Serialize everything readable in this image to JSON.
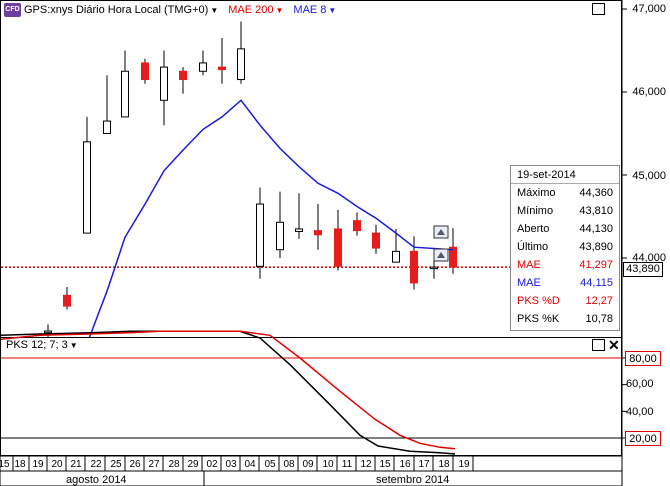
{
  "header": {
    "badge": "CFD",
    "symbol_title": "GPS:xnys Diário Hora Local (TMG+0)",
    "mae200_label": "MAE 200",
    "mae8_label": "MAE 8"
  },
  "price_axis": {
    "labels": [
      "47,000",
      "46,000",
      "45,000",
      "44,000"
    ]
  },
  "last_price_tag": "43,890",
  "info_box": {
    "date": "19-set-2014",
    "rows": [
      {
        "label": "Máximo",
        "value": "44,360"
      },
      {
        "label": "Mínimo",
        "value": "43,810"
      },
      {
        "label": "Aberto",
        "value": "44,130"
      },
      {
        "label": "Último",
        "value": "43,890"
      },
      {
        "label": "MAE",
        "value": "41,297"
      },
      {
        "label": "MAE",
        "value": "44,115"
      },
      {
        "label": "PKS %D",
        "value": "12,27"
      },
      {
        "label": "PKS %K",
        "value": "10,78"
      }
    ]
  },
  "indicator": {
    "title": "PKS 12; 7; 3",
    "level_high": "80,00",
    "level_low": "20,00",
    "ticks": [
      "60,00",
      "40,00"
    ]
  },
  "x_axis": {
    "days": [
      "15",
      "18",
      "19",
      "20",
      "21",
      "22",
      "25",
      "26",
      "27",
      "28",
      "29",
      "02",
      "03",
      "04",
      "05",
      "08",
      "09",
      "10",
      "11",
      "12",
      "15",
      "16",
      "17",
      "18",
      "19"
    ],
    "months": [
      "agosto 2014",
      "setembro 2014"
    ]
  },
  "colors": {
    "up": "#ffffff",
    "down": "#e81c1c",
    "mae8": "#1a1ad8",
    "red": "#e00000"
  },
  "chart_data": {
    "type": "candlestick",
    "y_range": [
      43000,
      47100
    ],
    "candles": [
      {
        "date": "20",
        "open": 43100,
        "high": 43200,
        "low": 43050,
        "close": 43120
      },
      {
        "date": "21",
        "open": 43550,
        "high": 43650,
        "low": 43380,
        "close": 43420
      },
      {
        "date": "22",
        "open": 44300,
        "high": 45700,
        "low": 44300,
        "close": 45400
      },
      {
        "date": "25",
        "open": 45500,
        "high": 46200,
        "low": 45500,
        "close": 45650
      },
      {
        "date": "26",
        "open": 45700,
        "high": 46500,
        "low": 45700,
        "close": 46250
      },
      {
        "date": "27",
        "open": 46350,
        "high": 46400,
        "low": 46100,
        "close": 46150
      },
      {
        "date": "28",
        "open": 45900,
        "high": 46500,
        "low": 45600,
        "close": 46300
      },
      {
        "date": "29",
        "open": 46250,
        "high": 46300,
        "low": 45980,
        "close": 46150
      },
      {
        "date": "02",
        "open": 46250,
        "high": 46500,
        "low": 46200,
        "close": 46350
      },
      {
        "date": "03",
        "open": 46300,
        "high": 46650,
        "low": 46100,
        "close": 46270
      },
      {
        "date": "04",
        "open": 46150,
        "high": 46850,
        "low": 46100,
        "close": 46520
      },
      {
        "date": "08",
        "open": 43900,
        "high": 44850,
        "low": 43750,
        "close": 44650
      },
      {
        "date": "09",
        "open": 44100,
        "high": 44800,
        "low": 44000,
        "close": 44430
      },
      {
        "date": "10",
        "open": 44320,
        "high": 44780,
        "low": 44230,
        "close": 44350
      },
      {
        "date": "11",
        "open": 44330,
        "high": 44650,
        "low": 44100,
        "close": 44280
      },
      {
        "date": "12",
        "open": 44350,
        "high": 44580,
        "low": 43850,
        "close": 43900
      },
      {
        "date": "15",
        "open": 44450,
        "high": 44550,
        "low": 44270,
        "close": 44330
      },
      {
        "date": "16",
        "open": 44300,
        "high": 44400,
        "low": 44050,
        "close": 44120
      },
      {
        "date": "17",
        "open": 43950,
        "high": 44350,
        "low": 43950,
        "close": 44080
      },
      {
        "date": "18",
        "open": 44080,
        "high": 44260,
        "low": 43620,
        "close": 43700
      },
      {
        "date": "18b",
        "open": 43890,
        "high": 43980,
        "low": 43750,
        "close": 43890
      },
      {
        "date": "19",
        "open": 44130,
        "high": 44360,
        "low": 43810,
        "close": 43890
      }
    ],
    "mae8": [
      43000,
      43600,
      44250,
      44650,
      45050,
      45300,
      45550,
      45700,
      45900,
      45600,
      45320,
      45100,
      44900,
      44780,
      44620,
      44480,
      44300,
      44130,
      44100
    ]
  }
}
